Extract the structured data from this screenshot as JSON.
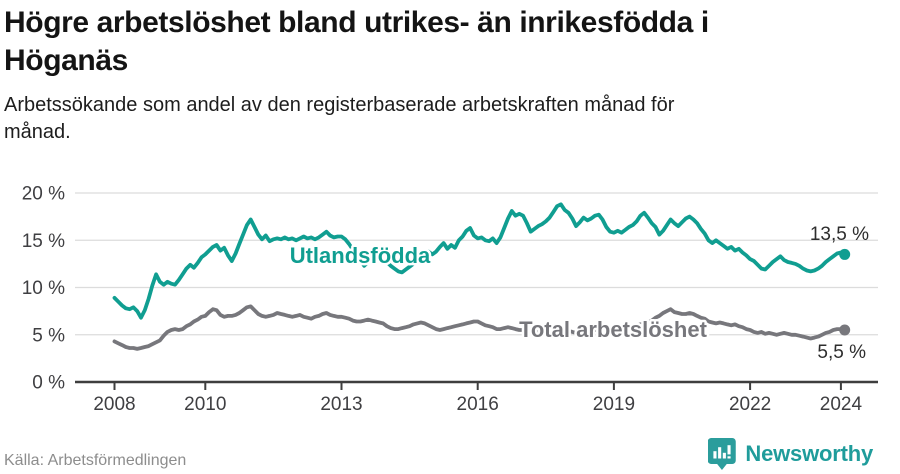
{
  "header": {
    "title": "Högre arbetslöshet bland utrikes- än inrikesfödda i\nHöganäs",
    "subtitle": "Arbetssökande som andel av den registerbaserade arbetskraften månad för\nmånad."
  },
  "footer": {
    "source": "Källa: Arbetsförmedlingen",
    "brand": "Newsworthy"
  },
  "colors": {
    "series_foreign": "#109E91",
    "series_total": "#77777C",
    "grid": "#DCDCDC",
    "axis": "#3E3E3E",
    "tick_label": "#3F3F42",
    "annotation": "#2D2D2D",
    "brand_teal": "#1F9C9B",
    "halo": "#FFFFFF"
  },
  "chart_data": {
    "type": "line",
    "title": "Högre arbetslöshet bland utrikes- än inrikesfödda i Höganäs",
    "subtitle": "Arbetssökande som andel av den registerbaserade arbetskraften månad för månad.",
    "source": "Källa: Arbetsförmedlingen",
    "x_axis": {
      "ticks": [
        2008,
        2010,
        2013,
        2016,
        2019,
        2022,
        2024
      ],
      "start_year": 2008,
      "points_per_year": 12,
      "grid": false
    },
    "y_axis": {
      "ticks": [
        0,
        5,
        10,
        15,
        20
      ],
      "tick_labels": [
        "0 %",
        "5 %",
        "10 %",
        "15 %",
        "20 %"
      ],
      "range": [
        0,
        20
      ],
      "grid": true
    },
    "legend_position": "on-chart-labels",
    "series": [
      {
        "name": "Utlandsfödda",
        "color": "#109E91",
        "end_label": "13,5 %",
        "end_value": 13.5,
        "values_by_year": [
          [
            8.9,
            8.5,
            8.1,
            7.8,
            7.7,
            7.9,
            7.5,
            6.8,
            7.6,
            8.8,
            10.2,
            11.4
          ],
          [
            10.6,
            10.3,
            10.6,
            10.4,
            10.3,
            10.8,
            11.4,
            12.0,
            12.4,
            12.1,
            12.6,
            13.2
          ],
          [
            13.5,
            13.9,
            14.3,
            14.5,
            13.9,
            14.2,
            13.4,
            12.8,
            13.6,
            14.6,
            15.6,
            16.6
          ],
          [
            17.2,
            16.4,
            15.6,
            15.1,
            15.5,
            14.9,
            15.1,
            15.2,
            15.1,
            15.3,
            15.1,
            15.2
          ],
          [
            15.0,
            15.2,
            15.4,
            15.2,
            15.3,
            15.1,
            15.3,
            15.6,
            15.9,
            15.5,
            15.3,
            15.4
          ],
          [
            15.4,
            15.1,
            14.6,
            14.0,
            13.4,
            12.9,
            12.3,
            12.7,
            13.1,
            13.5,
            13.4,
            12.9
          ],
          [
            12.7,
            12.3,
            12.0,
            11.7,
            11.6,
            11.9,
            12.2,
            12.5,
            12.8,
            13.1,
            13.5,
            13.8
          ],
          [
            13.5,
            13.8,
            14.3,
            14.7,
            14.1,
            14.5,
            14.2,
            15.0,
            15.4,
            16.0,
            16.3,
            15.5
          ],
          [
            15.2,
            15.3,
            15.0,
            14.9,
            15.2,
            14.7,
            15.3,
            16.3,
            17.3,
            18.1,
            17.6,
            17.8
          ],
          [
            17.6,
            16.8,
            15.9,
            16.2,
            16.5,
            16.7,
            17.0,
            17.4,
            18.0,
            18.6,
            18.8,
            18.2
          ],
          [
            17.9,
            17.3,
            16.5,
            16.9,
            17.4,
            17.1,
            17.3,
            17.6,
            17.7,
            17.2,
            16.4,
            15.9
          ],
          [
            15.8,
            16.0,
            15.8,
            16.1,
            16.4,
            16.6,
            17.0,
            17.6,
            17.9,
            17.4,
            16.8,
            16.4
          ],
          [
            15.6,
            16.0,
            16.6,
            17.2,
            16.8,
            16.5,
            16.9,
            17.3,
            17.5,
            17.2,
            16.8,
            16.2
          ],
          [
            15.7,
            15.0,
            14.7,
            15.0,
            14.7,
            14.4,
            14.1,
            14.3,
            13.9,
            14.1,
            13.7,
            13.4
          ],
          [
            13.0,
            12.8,
            12.4,
            12.0,
            11.9,
            12.3,
            12.7,
            13.0,
            13.3,
            12.9,
            12.7,
            12.6
          ],
          [
            12.5,
            12.3,
            12.0,
            11.8,
            11.7,
            11.8,
            12.0,
            12.3,
            12.7,
            13.0,
            13.3,
            13.6
          ],
          [
            13.7,
            13.5
          ]
        ]
      },
      {
        "name": "Total arbetslöshet",
        "color": "#77777C",
        "end_label": "5,5 %",
        "end_value": 5.5,
        "values_by_year": [
          [
            4.3,
            4.1,
            3.9,
            3.7,
            3.6,
            3.6,
            3.5,
            3.6,
            3.7,
            3.8,
            4.0,
            4.2
          ],
          [
            4.4,
            4.9,
            5.3,
            5.5,
            5.6,
            5.5,
            5.6,
            5.9,
            6.1,
            6.4,
            6.6,
            6.9
          ],
          [
            7.0,
            7.4,
            7.7,
            7.6,
            7.1,
            6.9,
            7.0,
            7.0,
            7.1,
            7.3,
            7.6,
            7.9
          ],
          [
            8.0,
            7.6,
            7.2,
            7.0,
            6.9,
            7.0,
            7.1,
            7.3,
            7.2,
            7.1,
            7.0,
            6.9
          ],
          [
            7.0,
            7.1,
            6.9,
            6.8,
            6.7,
            6.9,
            7.0,
            7.2,
            7.3,
            7.1,
            7.0,
            6.9
          ],
          [
            6.9,
            6.8,
            6.7,
            6.5,
            6.4,
            6.4,
            6.5,
            6.6,
            6.5,
            6.4,
            6.3,
            6.2
          ],
          [
            5.9,
            5.7,
            5.6,
            5.6,
            5.7,
            5.8,
            5.9,
            6.1,
            6.2,
            6.3,
            6.2,
            6.0
          ],
          [
            5.8,
            5.6,
            5.5,
            5.6,
            5.7,
            5.8,
            5.9,
            6.0,
            6.1,
            6.2,
            6.3,
            6.4
          ],
          [
            6.4,
            6.2,
            6.0,
            5.9,
            5.8,
            5.6,
            5.6,
            5.7,
            5.8,
            5.7,
            5.6,
            5.5
          ],
          [
            5.5,
            5.4,
            5.4,
            5.3,
            5.3,
            5.4,
            5.5,
            5.6,
            5.6,
            5.5,
            5.5,
            5.4
          ],
          [
            5.4,
            5.3,
            5.2,
            5.2,
            5.3,
            5.4,
            5.4,
            5.5,
            5.5,
            5.4,
            5.4,
            5.5
          ],
          [
            5.5,
            5.6,
            5.6,
            5.7,
            5.8,
            5.9,
            6.0,
            6.1,
            6.2,
            6.3,
            6.5,
            6.8
          ],
          [
            7.0,
            7.3,
            7.5,
            7.7,
            7.4,
            7.3,
            7.2,
            7.2,
            7.3,
            7.2,
            7.0,
            6.8
          ],
          [
            6.7,
            6.4,
            6.3,
            6.2,
            6.3,
            6.2,
            6.1,
            6.0,
            6.1,
            5.9,
            5.8,
            5.6
          ],
          [
            5.5,
            5.3,
            5.2,
            5.3,
            5.1,
            5.2,
            5.1,
            5.0,
            5.1,
            5.2,
            5.1,
            5.0
          ],
          [
            5.0,
            4.9,
            4.8,
            4.7,
            4.6,
            4.7,
            4.8,
            5.0,
            5.2,
            5.3,
            5.5,
            5.6
          ],
          [
            5.6,
            5.5
          ]
        ]
      }
    ]
  }
}
